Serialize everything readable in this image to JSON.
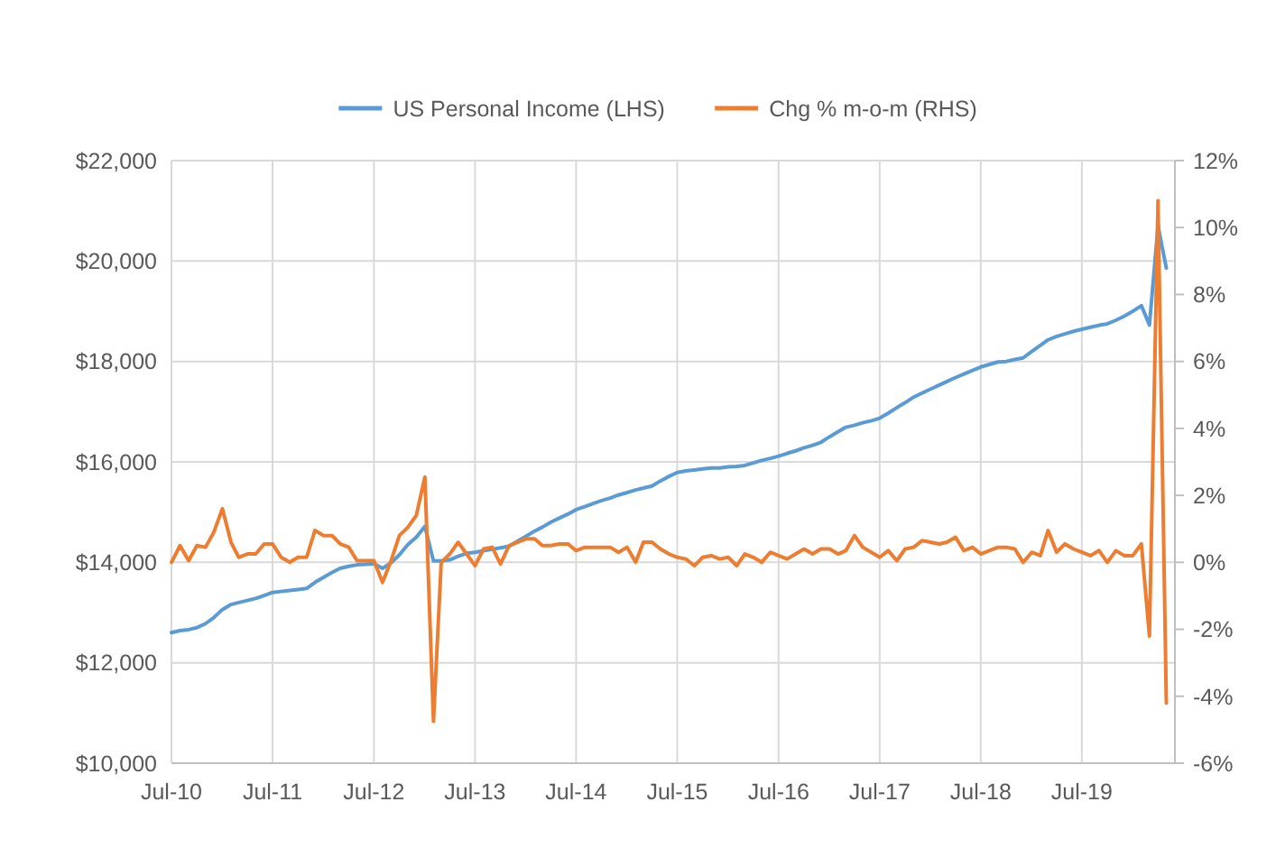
{
  "chart_data": {
    "type": "line",
    "x": [
      "2010-07",
      "2010-08",
      "2010-09",
      "2010-10",
      "2010-11",
      "2010-12",
      "2011-01",
      "2011-02",
      "2011-03",
      "2011-04",
      "2011-05",
      "2011-06",
      "2011-07",
      "2011-08",
      "2011-09",
      "2011-10",
      "2011-11",
      "2011-12",
      "2012-01",
      "2012-02",
      "2012-03",
      "2012-04",
      "2012-05",
      "2012-06",
      "2012-07",
      "2012-08",
      "2012-09",
      "2012-10",
      "2012-11",
      "2012-12",
      "2013-01",
      "2013-02",
      "2013-03",
      "2013-04",
      "2013-05",
      "2013-06",
      "2013-07",
      "2013-08",
      "2013-09",
      "2013-10",
      "2013-11",
      "2013-12",
      "2014-01",
      "2014-02",
      "2014-03",
      "2014-04",
      "2014-05",
      "2014-06",
      "2014-07",
      "2014-08",
      "2014-09",
      "2014-10",
      "2014-11",
      "2014-12",
      "2015-01",
      "2015-02",
      "2015-03",
      "2015-04",
      "2015-05",
      "2015-06",
      "2015-07",
      "2015-08",
      "2015-09",
      "2015-10",
      "2015-11",
      "2015-12",
      "2016-01",
      "2016-02",
      "2016-03",
      "2016-04",
      "2016-05",
      "2016-06",
      "2016-07",
      "2016-08",
      "2016-09",
      "2016-10",
      "2016-11",
      "2016-12",
      "2017-01",
      "2017-02",
      "2017-03",
      "2017-04",
      "2017-05",
      "2017-06",
      "2017-07",
      "2017-08",
      "2017-09",
      "2017-10",
      "2017-11",
      "2017-12",
      "2018-01",
      "2018-02",
      "2018-03",
      "2018-04",
      "2018-05",
      "2018-06",
      "2018-07",
      "2018-08",
      "2018-09",
      "2018-10",
      "2018-11",
      "2018-12",
      "2019-01",
      "2019-02",
      "2019-03",
      "2019-04",
      "2019-05",
      "2019-06",
      "2019-07",
      "2019-08",
      "2019-09",
      "2019-10",
      "2019-11",
      "2019-12",
      "2020-01",
      "2020-02",
      "2020-03",
      "2020-04",
      "2020-05"
    ],
    "series": [
      {
        "name": "US Personal Income (LHS)",
        "color": "#5b9bd5",
        "values": [
          12600,
          12640,
          12660,
          12700,
          12780,
          12900,
          13060,
          13160,
          13200,
          13240,
          13280,
          13340,
          13400,
          13420,
          13440,
          13460,
          13480,
          13600,
          13700,
          13800,
          13880,
          13920,
          13950,
          13960,
          13975,
          13880,
          13990,
          14150,
          14355,
          14500,
          14715,
          14030,
          14030,
          14050,
          14120,
          14180,
          14200,
          14230,
          14260,
          14290,
          14320,
          14420,
          14520,
          14620,
          14700,
          14800,
          14880,
          14960,
          15050,
          15110,
          15170,
          15230,
          15280,
          15340,
          15390,
          15440,
          15480,
          15520,
          15620,
          15710,
          15790,
          15820,
          15840,
          15860,
          15880,
          15880,
          15900,
          15910,
          15930,
          15980,
          16030,
          16070,
          16115,
          16170,
          16220,
          16280,
          16330,
          16390,
          16500,
          16600,
          16690,
          16730,
          16780,
          16820,
          16870,
          16970,
          17080,
          17180,
          17290,
          17370,
          17450,
          17530,
          17600,
          17680,
          17750,
          17820,
          17890,
          17940,
          17990,
          18000,
          18040,
          18070,
          18200,
          18320,
          18430,
          18500,
          18550,
          18600,
          18640,
          18680,
          18720,
          18750,
          18820,
          18900,
          19000,
          19110,
          18725,
          20700,
          19860
        ]
      },
      {
        "name": "Chg % m-o-m (RHS)",
        "color": "#ed7d31",
        "axis": "y2",
        "values": [
          0.0,
          0.5,
          0.05,
          0.5,
          0.45,
          0.9,
          1.6,
          0.6,
          0.15,
          0.25,
          0.25,
          0.55,
          0.55,
          0.15,
          0.0,
          0.15,
          0.15,
          0.95,
          0.8,
          0.8,
          0.55,
          0.45,
          0.05,
          0.05,
          0.05,
          -0.6,
          0.05,
          0.8,
          1.05,
          1.4,
          2.55,
          -4.75,
          0.0,
          0.25,
          0.6,
          0.25,
          -0.1,
          0.4,
          0.45,
          -0.05,
          0.5,
          0.6,
          0.7,
          0.7,
          0.5,
          0.5,
          0.55,
          0.55,
          0.35,
          0.45,
          0.45,
          0.45,
          0.45,
          0.3,
          0.45,
          0.0,
          0.6,
          0.6,
          0.4,
          0.25,
          0.15,
          0.1,
          -0.1,
          0.15,
          0.2,
          0.1,
          0.15,
          -0.1,
          0.25,
          0.15,
          0.0,
          0.3,
          0.2,
          0.1,
          0.25,
          0.4,
          0.25,
          0.4,
          0.4,
          0.25,
          0.35,
          0.8,
          0.45,
          0.3,
          0.15,
          0.35,
          0.05,
          0.4,
          0.45,
          0.65,
          0.6,
          0.55,
          0.6,
          0.75,
          0.35,
          0.45,
          0.25,
          0.35,
          0.45,
          0.45,
          0.4,
          0.0,
          0.3,
          0.2,
          0.95,
          0.3,
          0.55,
          0.4,
          0.3,
          0.2,
          0.35,
          0.0,
          0.35,
          0.2,
          0.2,
          0.55,
          -2.2,
          10.8,
          -4.2
        ]
      }
    ],
    "xlim": [
      "2010-07",
      "2020-06"
    ],
    "xticks": [
      {
        "value": "2010-07",
        "label": "Jul-10"
      },
      {
        "value": "2011-07",
        "label": "Jul-11"
      },
      {
        "value": "2012-07",
        "label": "Jul-12"
      },
      {
        "value": "2013-07",
        "label": "Jul-13"
      },
      {
        "value": "2014-07",
        "label": "Jul-14"
      },
      {
        "value": "2015-07",
        "label": "Jul-15"
      },
      {
        "value": "2016-07",
        "label": "Jul-16"
      },
      {
        "value": "2017-07",
        "label": "Jul-17"
      },
      {
        "value": "2018-07",
        "label": "Jul-18"
      },
      {
        "value": "2019-07",
        "label": "Jul-19"
      }
    ],
    "ylim": [
      10000,
      22000
    ],
    "yticks": [
      {
        "value": 10000,
        "label": "$10,000"
      },
      {
        "value": 12000,
        "label": "$12,000"
      },
      {
        "value": 14000,
        "label": "$14,000"
      },
      {
        "value": 16000,
        "label": "$16,000"
      },
      {
        "value": 18000,
        "label": "$18,000"
      },
      {
        "value": 20000,
        "label": "$20,000"
      },
      {
        "value": 22000,
        "label": "$22,000"
      }
    ],
    "y2lim": [
      -6,
      12
    ],
    "y2ticks": [
      {
        "value": -6,
        "label": "-6%"
      },
      {
        "value": -4,
        "label": "-4%"
      },
      {
        "value": -2,
        "label": "-2%"
      },
      {
        "value": 0,
        "label": "0%"
      },
      {
        "value": 2,
        "label": "2%"
      },
      {
        "value": 4,
        "label": "4%"
      },
      {
        "value": 6,
        "label": "6%"
      },
      {
        "value": 8,
        "label": "8%"
      },
      {
        "value": 10,
        "label": "10%"
      },
      {
        "value": 12,
        "label": "12%"
      }
    ],
    "grid": true,
    "legend": "top",
    "marker": "none",
    "line_style": "solid"
  }
}
